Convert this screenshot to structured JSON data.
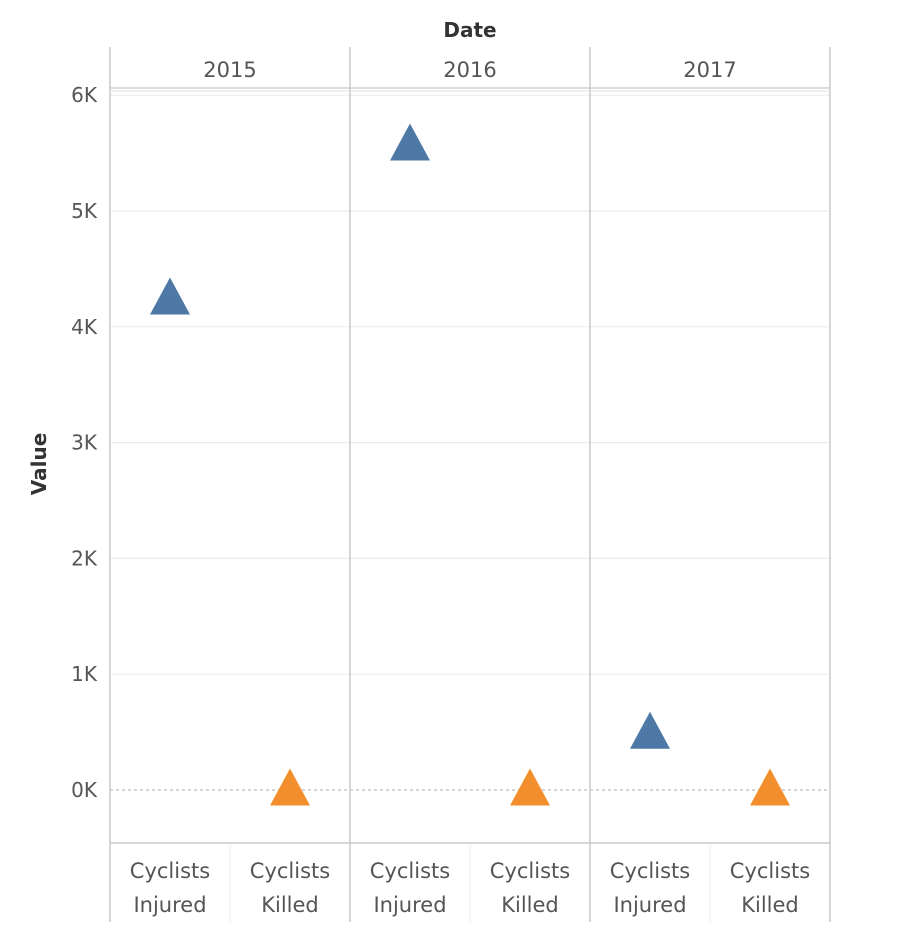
{
  "chart_data": {
    "type": "scatter",
    "column_header": "Date",
    "ylabel": "Value",
    "years": [
      "2015",
      "2016",
      "2017"
    ],
    "categories": [
      "Cyclists\nInjured",
      "Cyclists\nKilled"
    ],
    "yticks": [
      0,
      1000,
      2000,
      3000,
      4000,
      5000,
      6000
    ],
    "ytick_labels": [
      "0K",
      "1K",
      "2K",
      "3K",
      "4K",
      "5K",
      "6K"
    ],
    "ylim": [
      -450,
      6100
    ],
    "marker": "triangle",
    "points": [
      {
        "year": "2015",
        "category": "Cyclists\nInjured",
        "value": 4250
      },
      {
        "year": "2015",
        "category": "Cyclists\nKilled",
        "value": 10
      },
      {
        "year": "2016",
        "category": "Cyclists\nInjured",
        "value": 5580
      },
      {
        "year": "2016",
        "category": "Cyclists\nKilled",
        "value": 10
      },
      {
        "year": "2017",
        "category": "Cyclists\nInjured",
        "value": 500
      },
      {
        "year": "2017",
        "category": "Cyclists\nKilled",
        "value": 10
      }
    ],
    "colors": {
      "Cyclists\nInjured": "#4e79a7",
      "Cyclists\nKilled": "#f28e2b"
    },
    "grid": true
  }
}
